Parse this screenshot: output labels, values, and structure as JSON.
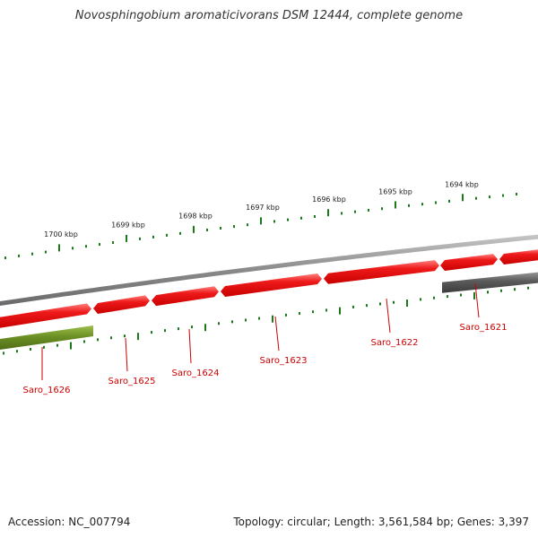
{
  "title": "Novosphingobium aromaticivorans DSM 12444, complete genome",
  "footer": {
    "accession": "Accession: NC_007794",
    "topology": "Topology: circular;",
    "length": "Length: 3,561,584 bp;",
    "genes": "Genes: 3,397"
  },
  "colors": {
    "forward_gene": "#e51010",
    "forward_gene_light": "#ff6a6a",
    "reverse_gene_olive": "#6b8e23",
    "reverse_gene_gray": "#5a5a5a",
    "backbone": "#8a8a8a",
    "tick": "#1a7a1a",
    "gene_label": "#cc0000",
    "label_line": "#cc0000"
  },
  "scale_labels": [
    "1700 kbp",
    "1699 kbp",
    "1698 kbp",
    "1697 kbp",
    "1696 kbp",
    "1695 kbp",
    "1694 kbp"
  ],
  "genes": [
    {
      "id": "Saro_1626",
      "strand": "reverse",
      "color": "olive"
    },
    {
      "id": "Saro_1625",
      "strand": "forward",
      "color": "red"
    },
    {
      "id": "Saro_1624",
      "strand": "forward",
      "color": "red"
    },
    {
      "id": "Saro_1623",
      "strand": "forward",
      "color": "red"
    },
    {
      "id": "Saro_1622",
      "strand": "forward",
      "color": "red"
    },
    {
      "id": "Saro_1621",
      "strand": "reverse",
      "color": "gray"
    },
    {
      "id": "",
      "strand": "forward",
      "color": "red"
    }
  ]
}
